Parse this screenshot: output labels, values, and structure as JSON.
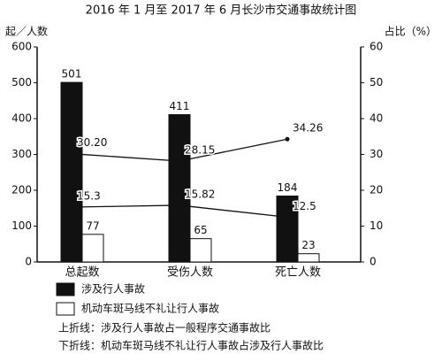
{
  "chart_data": {
    "type": "bar_line",
    "title": "2016 年 1 月至 2017 年 6 月长沙市交通事故统计图",
    "ylabel": "起／人数",
    "y2label": "占比（%）",
    "categories": [
      "总起数",
      "受伤人数",
      "死亡人数"
    ],
    "series": [
      {
        "name": "涉及行人事故",
        "type": "bar",
        "color": "#111111",
        "values": [
          501,
          411,
          184
        ]
      },
      {
        "name": "机动车斑马线不礼让行人事故",
        "type": "bar",
        "color": "#ffffff",
        "values": [
          77,
          65,
          23
        ]
      },
      {
        "name": "上折线：涉及行人事故占一般程序交通事故比",
        "type": "line",
        "axis": "y2",
        "color": "#111111",
        "values": [
          30.2,
          28.15,
          34.26
        ],
        "value_labels": [
          "30.20",
          "28.15",
          "34.26"
        ]
      },
      {
        "name": "下折线：机动车斑马线不礼让行人事故占涉及行人事故比",
        "type": "line",
        "axis": "y2",
        "color": "#111111",
        "values": [
          15.3,
          15.82,
          12.5
        ]
      }
    ],
    "ylim": [
      0,
      600
    ],
    "yticks": [
      0,
      100,
      200,
      300,
      400,
      500,
      600
    ],
    "y2lim": [
      0,
      60
    ],
    "y2ticks": [
      0,
      10,
      20,
      30,
      40,
      50,
      60
    ]
  }
}
